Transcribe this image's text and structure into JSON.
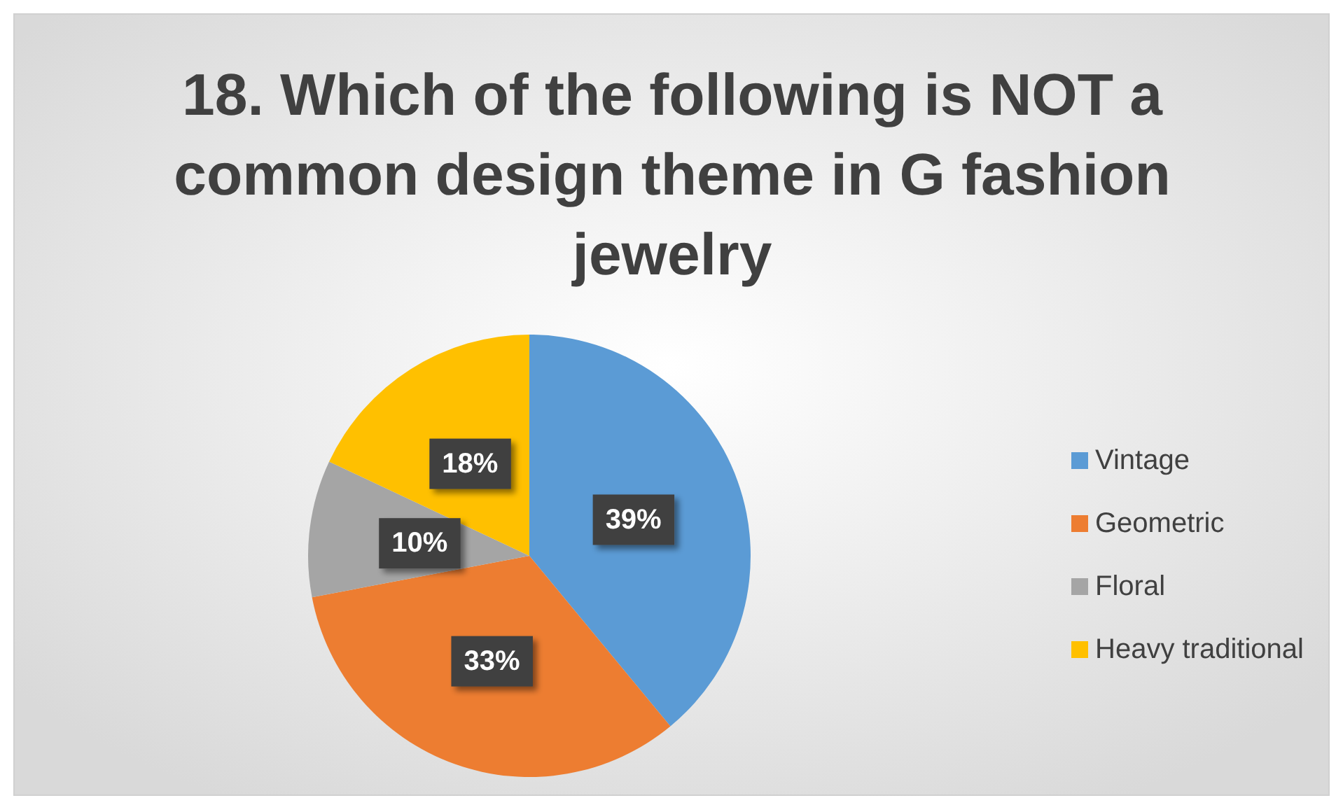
{
  "chart_data": {
    "type": "pie",
    "title": "18. Which of the following is NOT a common design theme in G fashion jewelry",
    "categories": [
      "Vintage",
      "Geometric",
      "Floral",
      "Heavy traditional"
    ],
    "values": [
      39,
      33,
      10,
      18
    ],
    "value_labels": [
      "39%",
      "33%",
      "10%",
      "18%"
    ],
    "colors": [
      "#5b9bd5",
      "#ed7d31",
      "#a5a5a5",
      "#ffc000"
    ],
    "legend": "right"
  }
}
